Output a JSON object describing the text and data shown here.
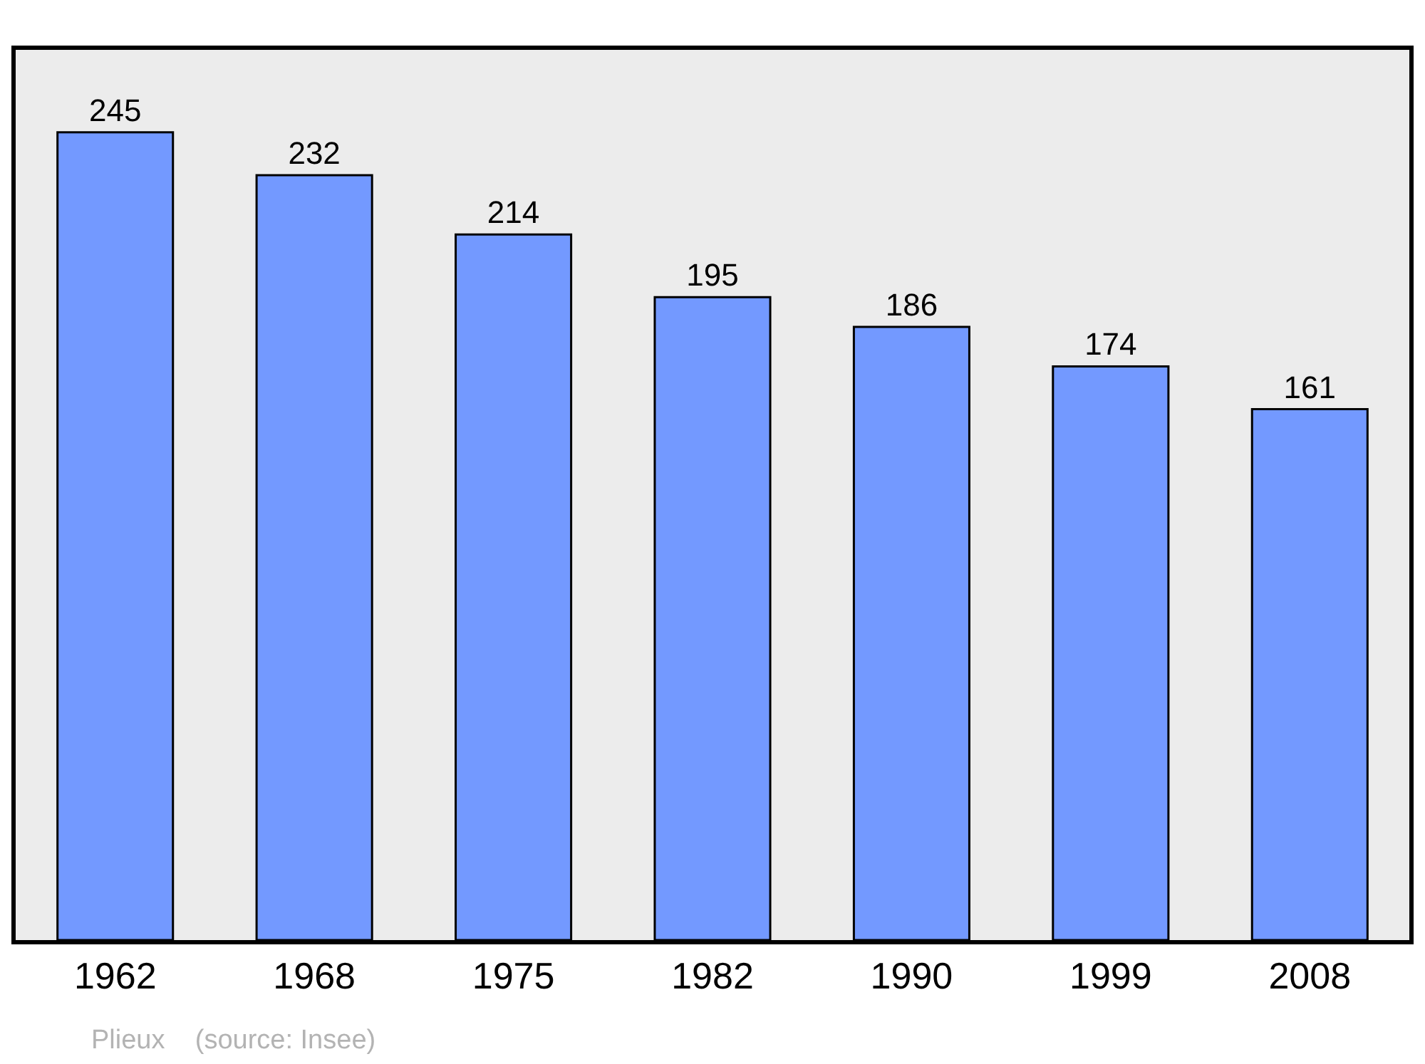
{
  "chart_data": {
    "type": "bar",
    "categories": [
      "1962",
      "1968",
      "1975",
      "1982",
      "1990",
      "1999",
      "2008"
    ],
    "values": [
      245,
      232,
      214,
      195,
      186,
      174,
      161
    ],
    "color": "#7399ff",
    "data_labels": true,
    "ylim": [
      0,
      270
    ],
    "grid": false,
    "legend": false,
    "tick_labels": "x",
    "annotations": [
      "Plieux    (source: Insee)"
    ]
  }
}
